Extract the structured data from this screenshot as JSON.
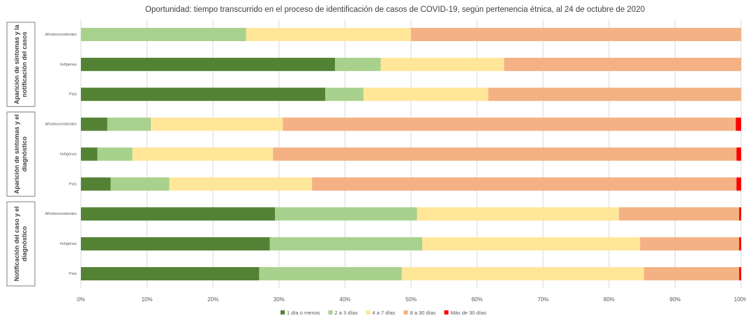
{
  "chart_data": {
    "type": "stacked_bar_horizontal",
    "title": "Oportunidad: tiempo transcurrido en el proceso de identificación de casos de COVID-19, según pertenencia étnica, al 24 de octubre de 2020",
    "groups": [
      {
        "label": [
          "Aparición de síntomas y la",
          "notificación del casos"
        ]
      },
      {
        "label": [
          "Aparición de síntomas y el",
          "diagnóstico"
        ]
      },
      {
        "label": [
          "Notificación del caso y el",
          "diagnóstico"
        ]
      }
    ],
    "categories": [
      "Afrodescendientes",
      "Indígenas",
      "País",
      "Afrodescendientes",
      "Indígenas",
      "País",
      "Afrodescendientes",
      "Indígenas",
      "País"
    ],
    "series": [
      {
        "name": "1 día o menos",
        "color": "#548235",
        "values": [
          0,
          38.5,
          37,
          4,
          2.5,
          4.5,
          29.4,
          28.6,
          27
        ]
      },
      {
        "name": "2 a 3 días",
        "color": "#a9d18e",
        "values": [
          25,
          6.9,
          5.8,
          6.6,
          5.3,
          8.9,
          21.5,
          23.1,
          21.6
        ]
      },
      {
        "name": "4 a 7 días",
        "color": "#ffe699",
        "values": [
          25,
          18.7,
          18.9,
          20,
          21.3,
          21.6,
          30.6,
          33,
          36.7
        ]
      },
      {
        "name": "8 a 30 días",
        "color": "#f4b183",
        "values": [
          50,
          35.9,
          38.3,
          68.6,
          70.2,
          64.3,
          18.2,
          15,
          14.4
        ]
      },
      {
        "name": "Más de 30 días",
        "color": "#ff0000",
        "values": [
          0,
          0,
          0,
          0.8,
          0.7,
          0.7,
          0.3,
          0.3,
          0.3
        ]
      }
    ],
    "xlim": [
      0,
      100
    ],
    "xticks": [
      {
        "value": 0,
        "label": "0%"
      },
      {
        "value": 10,
        "label": "10%"
      },
      {
        "value": 20,
        "label": "20%"
      },
      {
        "value": 30,
        "label": "30%"
      },
      {
        "value": 40,
        "label": "40%"
      },
      {
        "value": 50,
        "label": "50%"
      },
      {
        "value": 60,
        "label": "60%"
      },
      {
        "value": 70,
        "label": "70%"
      },
      {
        "value": 80,
        "label": "80%"
      },
      {
        "value": 90,
        "label": "90%"
      },
      {
        "value": 100,
        "label": "100%"
      }
    ],
    "grid": true,
    "legend": "bottom"
  }
}
